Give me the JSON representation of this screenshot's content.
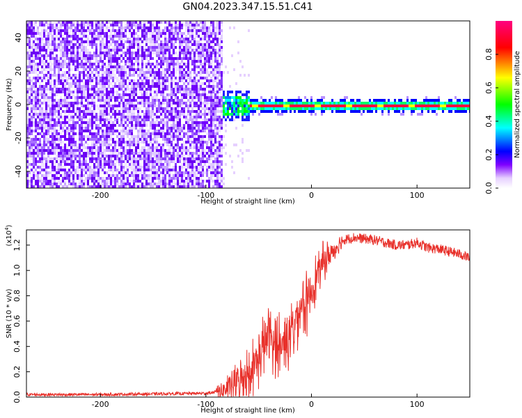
{
  "title": "GN04.2023.347.15.51.C41",
  "chart_data": [
    {
      "type": "heatmap",
      "xlabel": "Height of straight line (km)",
      "ylabel": "Frequency (Hz)",
      "xlim": [
        -270,
        150
      ],
      "ylim": [
        -50,
        50
      ],
      "x_ticks": [
        -200,
        -100,
        0,
        100
      ],
      "y_ticks": [
        -40,
        -20,
        0,
        20,
        40
      ],
      "noise_region_x": [
        -270,
        -85
      ],
      "signal_band_center_hz": 0,
      "colorbar": {
        "label": "Normalized spectral amplitude",
        "range": [
          0,
          1
        ],
        "ticks": [
          0.0,
          0.2,
          0.4,
          0.6,
          0.8
        ],
        "colors": [
          "#ffffff",
          "#7f00ff",
          "#0000ff",
          "#00ffff",
          "#00ff00",
          "#ffff00",
          "#ff0000",
          "#ff0080"
        ]
      }
    },
    {
      "type": "line",
      "xlabel": "Height of straight line (km)",
      "ylabel": "SNR (10 * v/v)",
      "multiplier": "(x10",
      "multiplier_exp": "4",
      "multiplier_close": ")",
      "xlim": [
        -270,
        150
      ],
      "ylim": [
        0,
        1.32
      ],
      "x_ticks": [
        -200,
        -100,
        0,
        100
      ],
      "y_ticks": [
        "0.0",
        "0.2",
        "0.4",
        "0.6",
        "0.8",
        "1.0",
        "1.2"
      ],
      "color": "#e8302a",
      "x": [
        -270,
        -200,
        -150,
        -100,
        -90,
        -80,
        -70,
        -60,
        -50,
        -45,
        -40,
        -35,
        -30,
        -25,
        -20,
        -15,
        -10,
        -5,
        0,
        5,
        10,
        15,
        20,
        25,
        30,
        40,
        50,
        60,
        70,
        80,
        90,
        100,
        110,
        120,
        130,
        140,
        150
      ],
      "values": [
        0.02,
        0.02,
        0.025,
        0.03,
        0.04,
        0.06,
        0.12,
        0.2,
        0.3,
        0.4,
        0.5,
        0.4,
        0.4,
        0.45,
        0.5,
        0.6,
        0.75,
        0.72,
        0.85,
        0.95,
        1.05,
        1.1,
        1.15,
        1.2,
        1.24,
        1.26,
        1.25,
        1.24,
        1.22,
        1.2,
        1.2,
        1.22,
        1.18,
        1.17,
        1.15,
        1.13,
        1.1
      ]
    }
  ]
}
